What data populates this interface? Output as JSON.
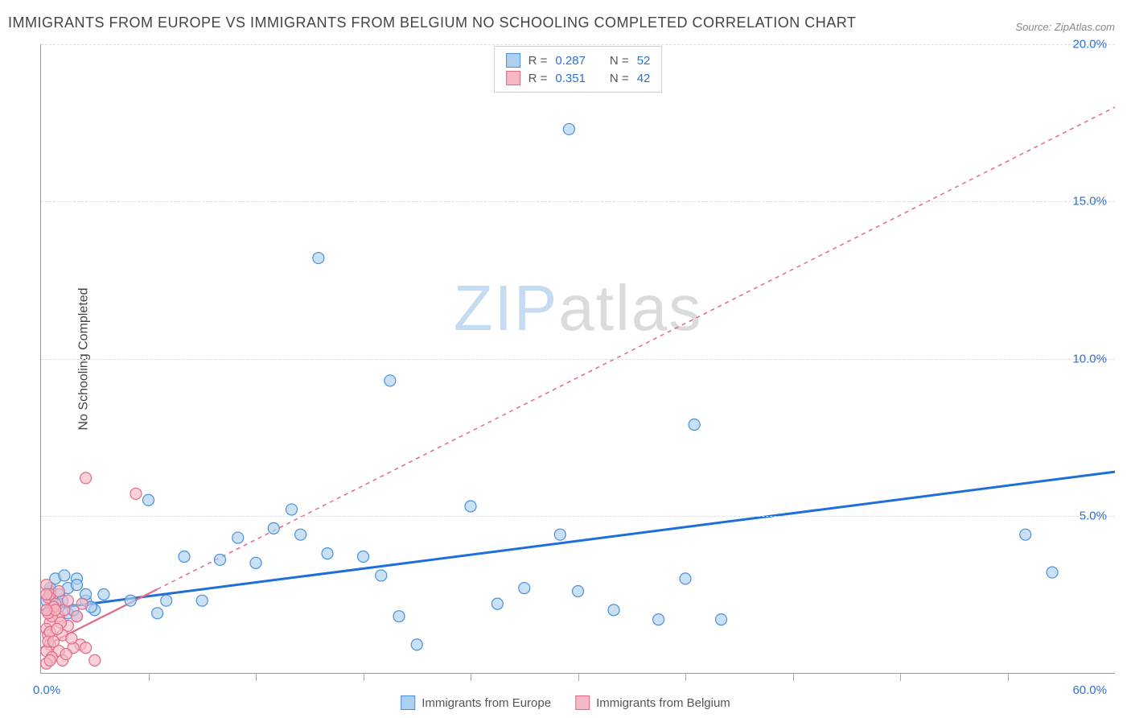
{
  "title": "IMMIGRANTS FROM EUROPE VS IMMIGRANTS FROM BELGIUM NO SCHOOLING COMPLETED CORRELATION CHART",
  "source": "Source: ZipAtlas.com",
  "y_axis_label": "No Schooling Completed",
  "watermark_part1": "ZIP",
  "watermark_part2": "atlas",
  "chart": {
    "type": "scatter",
    "xlim": [
      0,
      60
    ],
    "ylim": [
      0,
      20
    ],
    "x_tick_positions": [
      6,
      12,
      18,
      24,
      30,
      36,
      42,
      48,
      54
    ],
    "y_grid_values": [
      5,
      10,
      15,
      20
    ],
    "x_label_min": "0.0%",
    "x_label_max": "60.0%",
    "y_labels": [
      "5.0%",
      "10.0%",
      "15.0%",
      "20.0%"
    ],
    "background_color": "#ffffff",
    "grid_color": "#dddddd",
    "axis_color": "#999999",
    "marker_radius": 7,
    "series": [
      {
        "name": "Immigrants from Europe",
        "fill_color": "#aed0f0",
        "stroke_color": "#4a90d9",
        "fill_opacity": 0.65,
        "reg_line_color": "#1f6fd8",
        "reg_line_width": 3,
        "reg_line_dash": "none",
        "reg_line_start": [
          0,
          2.0
        ],
        "reg_line_end": [
          60,
          6.4
        ],
        "R": "0.287",
        "N": "52",
        "points": [
          [
            29.5,
            17.3
          ],
          [
            15.5,
            13.2
          ],
          [
            19.5,
            9.3
          ],
          [
            36.5,
            7.9
          ],
          [
            24,
            5.3
          ],
          [
            14,
            5.2
          ],
          [
            6,
            5.5
          ],
          [
            13,
            4.6
          ],
          [
            14.5,
            4.4
          ],
          [
            29,
            4.4
          ],
          [
            25.5,
            2.2
          ],
          [
            27,
            2.7
          ],
          [
            20,
            1.8
          ],
          [
            21,
            0.9
          ],
          [
            30,
            2.6
          ],
          [
            34.5,
            1.7
          ],
          [
            36,
            3.0
          ],
          [
            32,
            2.0
          ],
          [
            38,
            1.7
          ],
          [
            55,
            4.4
          ],
          [
            56.5,
            3.2
          ],
          [
            16,
            3.8
          ],
          [
            18,
            3.7
          ],
          [
            19,
            3.1
          ],
          [
            12,
            3.5
          ],
          [
            10,
            3.6
          ],
          [
            11,
            4.3
          ],
          [
            8,
            3.7
          ],
          [
            9,
            2.3
          ],
          [
            7,
            2.3
          ],
          [
            1,
            2.5
          ],
          [
            1.5,
            2.7
          ],
          [
            2.5,
            2.3
          ],
          [
            2,
            3.0
          ],
          [
            3,
            2.0
          ],
          [
            5,
            2.3
          ],
          [
            6.5,
            1.9
          ],
          [
            0.5,
            2.0
          ],
          [
            1,
            2.2
          ],
          [
            2,
            1.8
          ],
          [
            2.5,
            2.5
          ],
          [
            0.5,
            2.6
          ],
          [
            0.8,
            3.0
          ],
          [
            1.5,
            1.9
          ],
          [
            2,
            2.8
          ],
          [
            1.2,
            2.3
          ],
          [
            2.8,
            2.1
          ],
          [
            3.5,
            2.5
          ],
          [
            0.5,
            2.7
          ],
          [
            1.8,
            2.0
          ],
          [
            1.3,
            3.1
          ],
          [
            0.3,
            2.3
          ]
        ]
      },
      {
        "name": "Immigrants from Belgium",
        "fill_color": "#f5b8c4",
        "stroke_color": "#e26a87",
        "fill_opacity": 0.65,
        "reg_line_color": "#e26a87",
        "reg_line_width": 1.5,
        "reg_line_dash": "5,5",
        "reg_line_start": [
          0,
          0.8
        ],
        "reg_line_end": [
          60,
          18.0
        ],
        "reg_solid_until": 6.5,
        "R": "0.351",
        "N": "42",
        "points": [
          [
            2.5,
            6.2
          ],
          [
            5.3,
            5.7
          ],
          [
            0.3,
            2.8
          ],
          [
            0.4,
            2.4
          ],
          [
            0.5,
            2.0
          ],
          [
            0.8,
            2.2
          ],
          [
            1.0,
            1.8
          ],
          [
            0.5,
            1.6
          ],
          [
            0.3,
            1.4
          ],
          [
            1.5,
            1.5
          ],
          [
            2.0,
            1.8
          ],
          [
            0.4,
            1.2
          ],
          [
            1.2,
            1.2
          ],
          [
            0.5,
            0.9
          ],
          [
            2.2,
            0.9
          ],
          [
            1.8,
            0.8
          ],
          [
            0.3,
            0.7
          ],
          [
            1.0,
            0.7
          ],
          [
            2.5,
            0.8
          ],
          [
            0.6,
            0.5
          ],
          [
            1.2,
            0.4
          ],
          [
            0.3,
            0.3
          ],
          [
            3.0,
            0.4
          ],
          [
            0.5,
            2.5
          ],
          [
            1.0,
            2.6
          ],
          [
            0.7,
            2.1
          ],
          [
            1.3,
            2.0
          ],
          [
            0.6,
            1.8
          ],
          [
            0.4,
            1.9
          ],
          [
            1.5,
            2.3
          ],
          [
            0.8,
            2.0
          ],
          [
            1.1,
            1.6
          ],
          [
            0.3,
            2.0
          ],
          [
            0.5,
            1.3
          ],
          [
            1.7,
            1.1
          ],
          [
            0.4,
            1.0
          ],
          [
            2.3,
            2.2
          ],
          [
            0.7,
            1.0
          ],
          [
            0.5,
            0.4
          ],
          [
            1.4,
            0.6
          ],
          [
            0.9,
            1.4
          ],
          [
            0.3,
            2.5
          ]
        ]
      }
    ]
  },
  "legend_stat_labels": {
    "R": "R =",
    "N": "N ="
  },
  "bottom_legend": [
    "Immigrants from Europe",
    "Immigrants from Belgium"
  ]
}
